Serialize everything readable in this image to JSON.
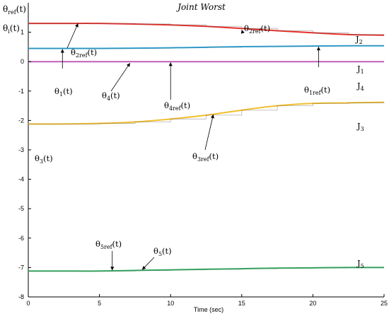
{
  "chart_data": {
    "type": "line",
    "title": "Joint Worst",
    "xlabel": "Time (sec)",
    "ylabel_top": "θref(t)",
    "ylabel_mid": "θi(t)",
    "xlim": [
      0,
      25
    ],
    "ylim": [
      -8,
      2
    ],
    "grid": false,
    "x_ticks": [
      "0",
      "5",
      "10",
      "15",
      "20",
      "25"
    ],
    "y_ticks": [
      "1",
      "0",
      "-1",
      "-2",
      "-3",
      "-4",
      "-5",
      "-6",
      "-7",
      "-8"
    ],
    "x": [
      0,
      2.5,
      5,
      7.5,
      10,
      12.5,
      15,
      17.5,
      20,
      22.5,
      25
    ],
    "series": [
      {
        "name": "J2",
        "color": "#e8312a",
        "values": [
          1.3,
          1.3,
          1.3,
          1.28,
          1.25,
          1.2,
          1.13,
          1.05,
          0.98,
          0.92,
          0.9
        ]
      },
      {
        "name": "J1",
        "color": "#2aa8e0",
        "values": [
          0.45,
          0.45,
          0.45,
          0.46,
          0.47,
          0.49,
          0.51,
          0.52,
          0.53,
          0.54,
          0.54
        ]
      },
      {
        "name": "J4",
        "color": "#e060d8",
        "values": [
          0,
          0,
          0,
          0,
          0,
          0,
          0,
          0,
          0,
          0,
          0
        ]
      },
      {
        "name": "J3",
        "color": "#f2be2c",
        "values": [
          -2.12,
          -2.12,
          -2.1,
          -2.05,
          -1.95,
          -1.82,
          -1.65,
          -1.5,
          -1.42,
          -1.4,
          -1.38
        ]
      },
      {
        "name": "J5",
        "color": "#2fb060",
        "values": [
          -7.12,
          -7.12,
          -7.12,
          -7.1,
          -7.08,
          -7.06,
          -7.04,
          -7.02,
          -7.01,
          -7.0,
          -7.0
        ]
      }
    ],
    "annotations": {
      "theta_2ref_left": {
        "label": "θ2ref(t)",
        "x": 3.5,
        "y": 1.3
      },
      "theta_2ref_right": {
        "label": "θ2ref(t)",
        "x": 15,
        "y": 1.13
      },
      "theta_1": {
        "label": "θ1(t)",
        "x": 2.4,
        "y": 0.45
      },
      "theta_1ref": {
        "label": "θ1ref(t)",
        "x": 20.4,
        "y": 0.53
      },
      "theta_4": {
        "label": "θ4(t)",
        "x": 7,
        "y": 0
      },
      "theta_4ref": {
        "label": "θ4ref(t)",
        "x": 10,
        "y": 0
      },
      "theta_3ref": {
        "label": "θ3ref(t)",
        "x": 13,
        "y": -1.75
      },
      "theta_3": {
        "label": "θ3(t)"
      },
      "theta_5ref": {
        "label": "θ5ref(t)",
        "x": 5.9,
        "y": -7.12
      },
      "theta_5": {
        "label": "θ5(t)",
        "x": 7.8,
        "y": -7.1
      }
    }
  }
}
